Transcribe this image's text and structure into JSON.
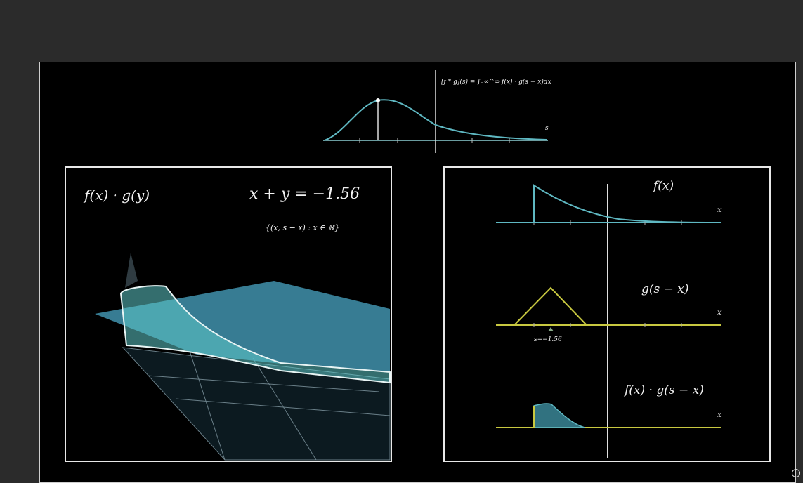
{
  "top": {
    "formula": "[f * g](s) = ∫₋∞^∞ f(x) · g(s − x)dx",
    "axis_label": "s"
  },
  "left_panel": {
    "product_label": "f(x) · g(y)",
    "line_equation": "x + y = −1.56",
    "set_notation": "{(x, s − x) : x ∈ ℝ}"
  },
  "right_panel": {
    "f_label": "f(x)",
    "f_axis": "x",
    "g_label": "g(s − x)",
    "g_axis": "x",
    "s_value_label": "s=−1.56",
    "product_label": "f(x) · g(s − x)",
    "product_axis": "x"
  },
  "colors": {
    "teal": "#5fb8c2",
    "yellow": "#c8c840",
    "surface": "#4aa6c4",
    "bg": "#000000",
    "frame": "#e8e8e8"
  }
}
